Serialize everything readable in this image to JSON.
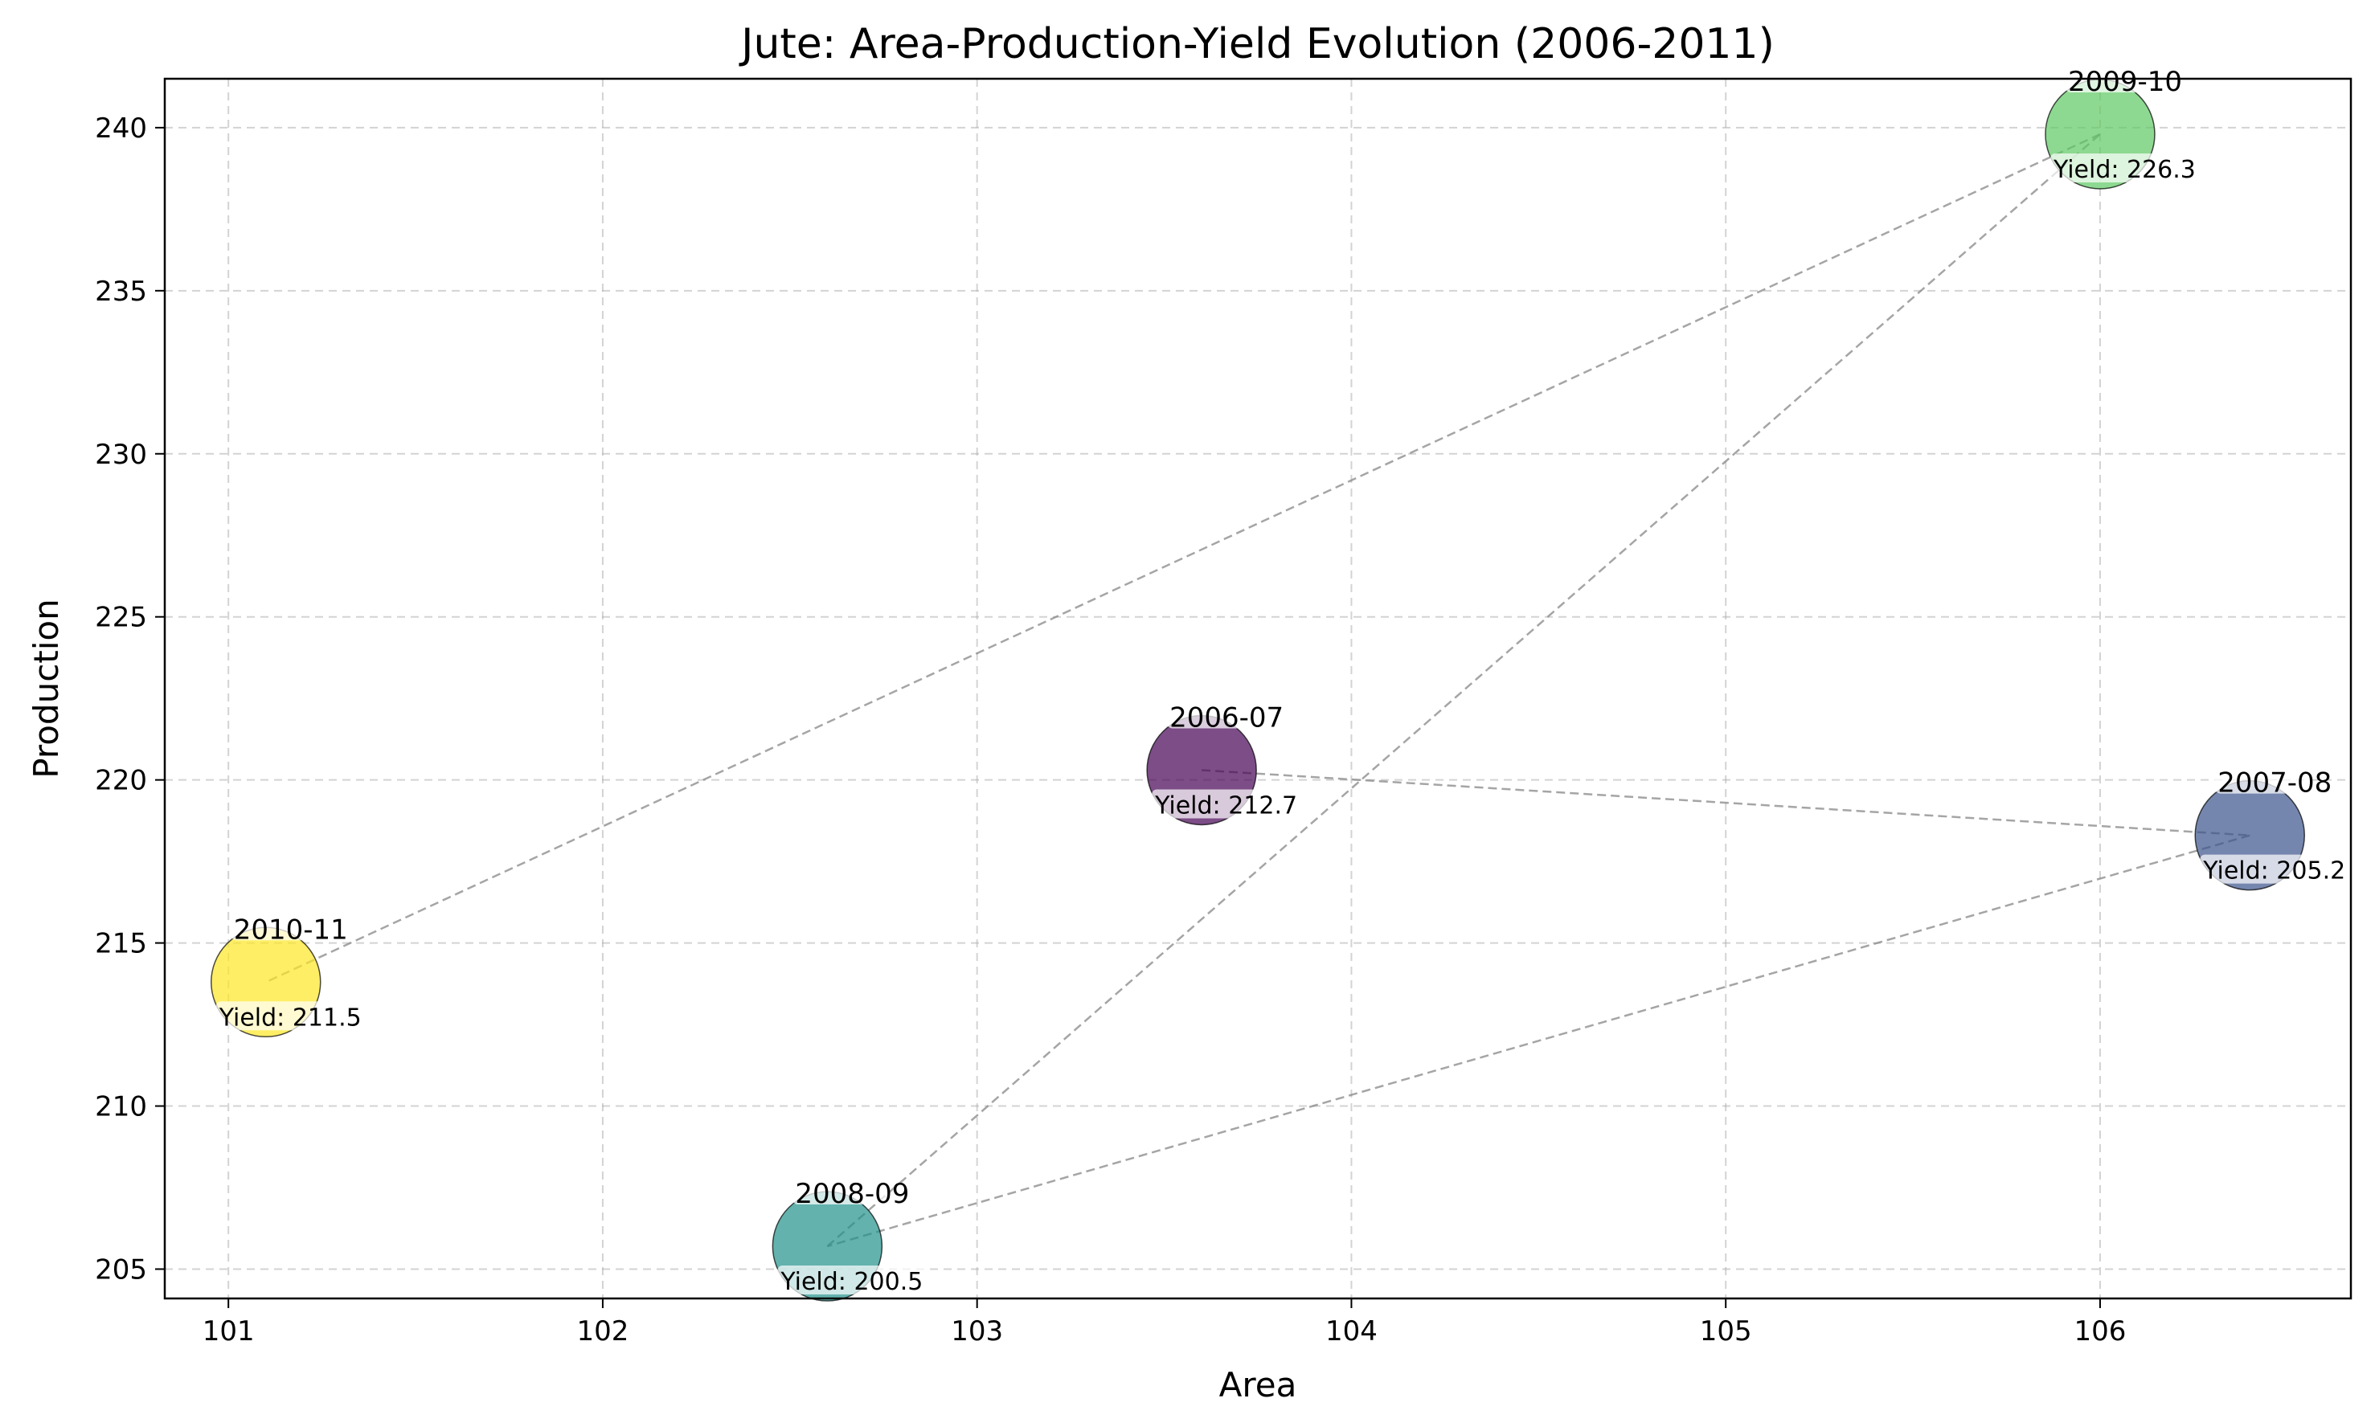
{
  "chart_data": {
    "type": "scatter",
    "title": "Jute: Area-Production-Yield Evolution (2006-2011)",
    "xlabel": "Area",
    "ylabel": "Production",
    "xlim": [
      100.83,
      106.67
    ],
    "ylim": [
      204.1,
      241.5
    ],
    "xticks": [
      101,
      102,
      103,
      104,
      105,
      106
    ],
    "yticks": [
      205,
      210,
      215,
      220,
      225,
      230,
      235,
      240
    ],
    "grid": true,
    "yield_prefix": "Yield: ",
    "points": [
      {
        "label": "2006-07",
        "x": 103.6,
        "y": 220.3,
        "yield": 212.7,
        "color": "#440154"
      },
      {
        "label": "2007-08",
        "x": 106.4,
        "y": 218.3,
        "yield": 205.2,
        "color": "#3b528b"
      },
      {
        "label": "2008-09",
        "x": 102.6,
        "y": 205.7,
        "yield": 200.5,
        "color": "#21918c"
      },
      {
        "label": "2009-10",
        "x": 106.0,
        "y": 239.8,
        "yield": 226.3,
        "color": "#5ec962"
      },
      {
        "label": "2010-11",
        "x": 101.1,
        "y": 213.8,
        "yield": 211.5,
        "color": "#fde725"
      }
    ]
  }
}
